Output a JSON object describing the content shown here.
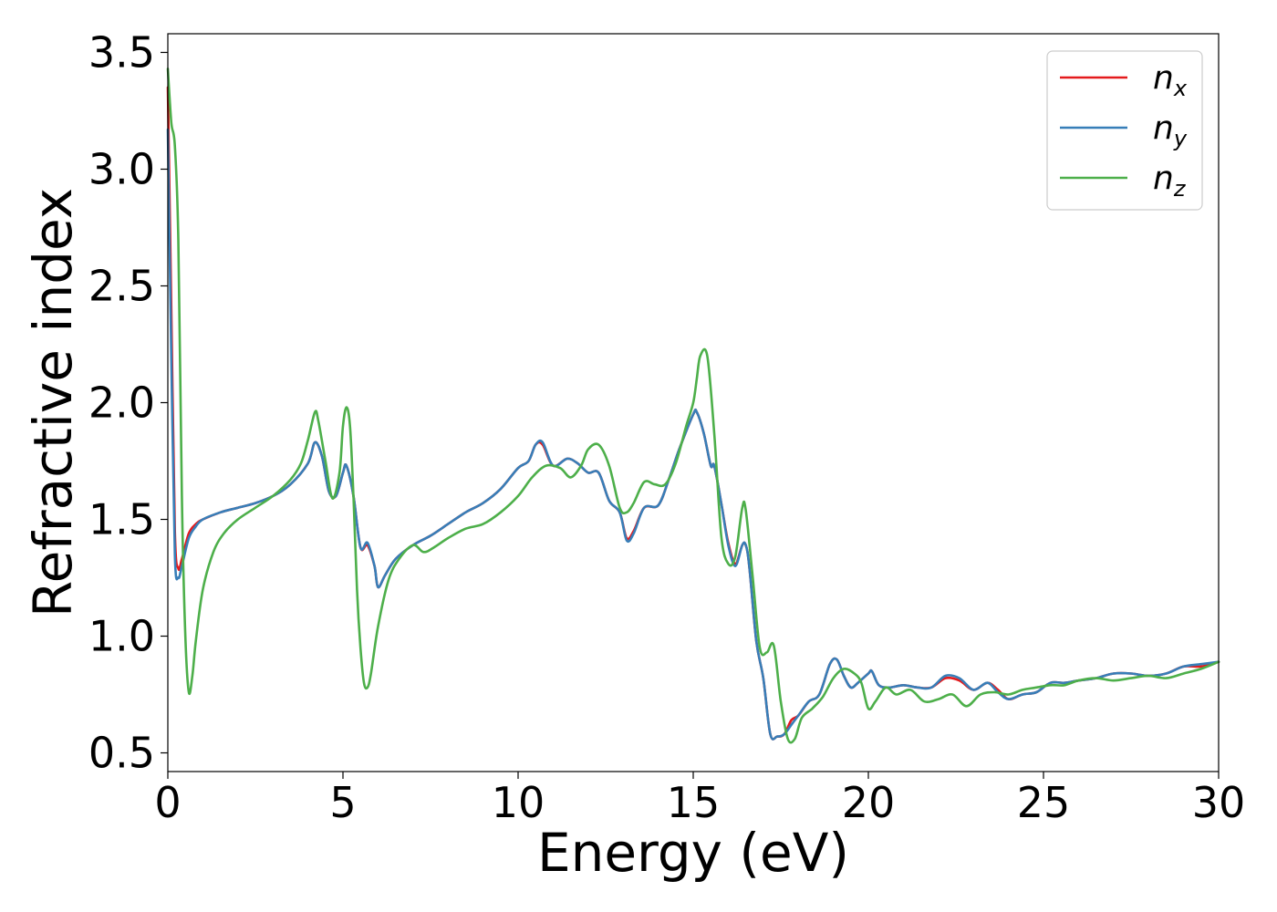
{
  "chart_data": {
    "type": "line",
    "xlabel": "Energy (eV)",
    "ylabel": "Refractive index",
    "xlim": [
      0,
      30
    ],
    "ylim": [
      0.42,
      3.58
    ],
    "xticks": [
      "0",
      "5",
      "10",
      "15",
      "20",
      "25",
      "30"
    ],
    "yticks": [
      "0.5",
      "1.0",
      "1.5",
      "2.0",
      "2.5",
      "3.0",
      "3.5"
    ],
    "grid": false,
    "legend_position": "top-right",
    "series": [
      {
        "name": "n",
        "subscript": "x",
        "color": "#e41a1c",
        "x": [
          0.0,
          0.1,
          0.2,
          0.3,
          0.4,
          0.6,
          0.8,
          1.0,
          1.5,
          2.0,
          2.5,
          3.0,
          3.5,
          4.0,
          4.2,
          4.4,
          4.6,
          4.8,
          5.0,
          5.1,
          5.3,
          5.5,
          5.7,
          5.9,
          6.0,
          6.2,
          6.5,
          7.0,
          7.5,
          8.0,
          8.5,
          9.0,
          9.5,
          10.0,
          10.3,
          10.5,
          10.7,
          11.0,
          11.4,
          11.7,
          12.0,
          12.3,
          12.6,
          12.9,
          13.1,
          13.3,
          13.6,
          14.0,
          14.3,
          14.6,
          15.0,
          15.1,
          15.3,
          15.5,
          15.6,
          15.8,
          16.0,
          16.2,
          16.4,
          16.5,
          16.6,
          16.8,
          17.0,
          17.2,
          17.4,
          17.6,
          17.8,
          18.0,
          18.3,
          18.6,
          18.9,
          19.1,
          19.3,
          19.5,
          19.7,
          20.0,
          20.1,
          20.3,
          20.6,
          21.0,
          21.4,
          21.8,
          22.2,
          22.6,
          23.0,
          23.4,
          23.7,
          24.0,
          24.4,
          24.8,
          25.2,
          25.6,
          26.0,
          26.5,
          27.0,
          27.5,
          28.0,
          28.5,
          29.0,
          29.5,
          30.0
        ],
        "values": [
          3.35,
          2.4,
          1.45,
          1.29,
          1.33,
          1.44,
          1.48,
          1.5,
          1.53,
          1.55,
          1.57,
          1.6,
          1.65,
          1.74,
          1.83,
          1.77,
          1.62,
          1.6,
          1.7,
          1.73,
          1.6,
          1.38,
          1.39,
          1.3,
          1.21,
          1.26,
          1.33,
          1.39,
          1.43,
          1.48,
          1.53,
          1.57,
          1.63,
          1.72,
          1.75,
          1.82,
          1.82,
          1.73,
          1.76,
          1.74,
          1.7,
          1.7,
          1.58,
          1.53,
          1.42,
          1.45,
          1.55,
          1.56,
          1.67,
          1.8,
          1.95,
          1.96,
          1.87,
          1.73,
          1.73,
          1.57,
          1.4,
          1.31,
          1.39,
          1.39,
          1.3,
          0.98,
          0.82,
          0.58,
          0.57,
          0.58,
          0.64,
          0.66,
          0.72,
          0.75,
          0.88,
          0.9,
          0.83,
          0.78,
          0.8,
          0.84,
          0.85,
          0.79,
          0.78,
          0.79,
          0.78,
          0.78,
          0.82,
          0.81,
          0.77,
          0.8,
          0.77,
          0.73,
          0.75,
          0.76,
          0.8,
          0.8,
          0.81,
          0.82,
          0.84,
          0.84,
          0.83,
          0.84,
          0.87,
          0.87,
          0.89
        ]
      },
      {
        "name": "n",
        "subscript": "y",
        "color": "#377eb8",
        "x": [
          0.0,
          0.1,
          0.2,
          0.3,
          0.4,
          0.6,
          0.8,
          1.0,
          1.5,
          2.0,
          2.5,
          3.0,
          3.5,
          4.0,
          4.2,
          4.4,
          4.6,
          4.8,
          5.0,
          5.1,
          5.3,
          5.5,
          5.7,
          5.9,
          6.0,
          6.2,
          6.5,
          7.0,
          7.5,
          8.0,
          8.5,
          9.0,
          9.5,
          10.0,
          10.3,
          10.5,
          10.7,
          11.0,
          11.4,
          11.7,
          12.0,
          12.3,
          12.6,
          12.9,
          13.1,
          13.3,
          13.6,
          14.0,
          14.3,
          14.6,
          15.0,
          15.1,
          15.3,
          15.5,
          15.6,
          15.8,
          16.0,
          16.2,
          16.4,
          16.5,
          16.6,
          16.8,
          17.0,
          17.2,
          17.4,
          17.6,
          17.8,
          18.0,
          18.3,
          18.6,
          18.9,
          19.1,
          19.3,
          19.5,
          19.7,
          20.0,
          20.1,
          20.3,
          20.6,
          21.0,
          21.4,
          21.8,
          22.2,
          22.6,
          23.0,
          23.4,
          23.7,
          24.0,
          24.4,
          24.8,
          25.2,
          25.6,
          26.0,
          26.5,
          27.0,
          27.5,
          28.0,
          28.5,
          29.0,
          29.5,
          30.0
        ],
        "values": [
          3.17,
          2.2,
          1.35,
          1.25,
          1.3,
          1.42,
          1.47,
          1.5,
          1.53,
          1.55,
          1.57,
          1.6,
          1.65,
          1.74,
          1.83,
          1.77,
          1.62,
          1.6,
          1.7,
          1.73,
          1.6,
          1.38,
          1.4,
          1.3,
          1.21,
          1.26,
          1.33,
          1.39,
          1.43,
          1.48,
          1.53,
          1.57,
          1.63,
          1.72,
          1.75,
          1.82,
          1.83,
          1.73,
          1.76,
          1.74,
          1.7,
          1.7,
          1.58,
          1.53,
          1.41,
          1.44,
          1.55,
          1.56,
          1.67,
          1.8,
          1.95,
          1.96,
          1.87,
          1.73,
          1.73,
          1.57,
          1.39,
          1.3,
          1.39,
          1.39,
          1.3,
          0.98,
          0.82,
          0.58,
          0.57,
          0.58,
          0.62,
          0.66,
          0.72,
          0.75,
          0.88,
          0.9,
          0.83,
          0.78,
          0.8,
          0.84,
          0.85,
          0.79,
          0.78,
          0.79,
          0.78,
          0.78,
          0.83,
          0.82,
          0.77,
          0.8,
          0.76,
          0.73,
          0.75,
          0.76,
          0.8,
          0.8,
          0.81,
          0.82,
          0.84,
          0.84,
          0.83,
          0.84,
          0.87,
          0.88,
          0.89
        ]
      },
      {
        "name": "n",
        "subscript": "z",
        "color": "#4daf4a",
        "x": [
          0.0,
          0.1,
          0.2,
          0.3,
          0.4,
          0.5,
          0.6,
          0.7,
          0.8,
          1.0,
          1.3,
          1.6,
          2.0,
          2.5,
          3.0,
          3.5,
          3.8,
          4.0,
          4.2,
          4.3,
          4.5,
          4.7,
          4.9,
          5.0,
          5.1,
          5.2,
          5.3,
          5.4,
          5.5,
          5.6,
          5.7,
          5.8,
          6.0,
          6.3,
          6.6,
          7.0,
          7.3,
          7.6,
          8.0,
          8.5,
          9.0,
          9.5,
          10.0,
          10.4,
          10.8,
          11.2,
          11.5,
          11.8,
          12.0,
          12.3,
          12.6,
          12.9,
          13.1,
          13.3,
          13.6,
          13.9,
          14.2,
          14.5,
          14.8,
          15.0,
          15.1,
          15.2,
          15.4,
          15.6,
          15.8,
          16.0,
          16.2,
          16.4,
          16.5,
          16.7,
          16.9,
          17.1,
          17.3,
          17.5,
          17.7,
          17.9,
          18.1,
          18.4,
          18.7,
          19.0,
          19.3,
          19.6,
          19.8,
          20.0,
          20.2,
          20.5,
          20.8,
          21.2,
          21.6,
          22.0,
          22.4,
          22.8,
          23.2,
          23.6,
          24.0,
          24.4,
          24.8,
          25.2,
          25.6,
          26.0,
          26.5,
          27.0,
          27.5,
          28.0,
          28.5,
          29.0,
          29.5,
          30.0
        ],
        "values": [
          3.43,
          3.2,
          3.1,
          2.7,
          1.6,
          1.0,
          0.76,
          0.83,
          0.98,
          1.2,
          1.36,
          1.44,
          1.5,
          1.55,
          1.6,
          1.67,
          1.74,
          1.84,
          1.96,
          1.92,
          1.75,
          1.59,
          1.7,
          1.9,
          1.98,
          1.9,
          1.6,
          1.2,
          0.95,
          0.8,
          0.78,
          0.84,
          1.04,
          1.24,
          1.33,
          1.39,
          1.36,
          1.38,
          1.42,
          1.46,
          1.48,
          1.53,
          1.6,
          1.68,
          1.73,
          1.72,
          1.68,
          1.73,
          1.8,
          1.82,
          1.73,
          1.55,
          1.53,
          1.57,
          1.66,
          1.65,
          1.65,
          1.74,
          1.9,
          2.0,
          2.1,
          2.2,
          2.2,
          1.87,
          1.43,
          1.31,
          1.34,
          1.55,
          1.54,
          1.25,
          0.95,
          0.93,
          0.96,
          0.72,
          0.56,
          0.56,
          0.65,
          0.69,
          0.74,
          0.82,
          0.86,
          0.84,
          0.8,
          0.69,
          0.72,
          0.78,
          0.75,
          0.77,
          0.72,
          0.73,
          0.75,
          0.7,
          0.75,
          0.76,
          0.75,
          0.77,
          0.78,
          0.79,
          0.79,
          0.81,
          0.82,
          0.81,
          0.82,
          0.83,
          0.82,
          0.84,
          0.86,
          0.89
        ]
      }
    ]
  }
}
